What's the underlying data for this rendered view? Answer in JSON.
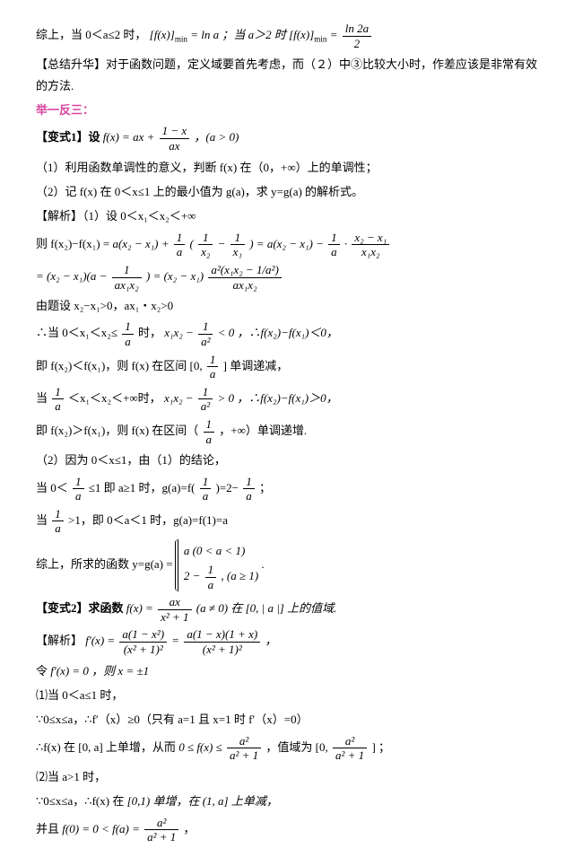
{
  "l1a": "综上，当 0＜a≤2 时，",
  "l1b": "[f(x)]",
  "l1c": "min",
  "l1d": " = ln a ；当 a＞2 时 ",
  "l1e": "[f(x)]",
  "l1f": "min",
  "l1g": " = ",
  "frac1n": "ln 2a",
  "frac1d": "2",
  "l2": "【总结升华】对于函数问题，定义域要首先考虑，而（２）中③比较大小时，作差应该是非常有效的方法.",
  "l3": "举一反三：",
  "l4a": "【变式1】设 ",
  "l4b": "f(x) = ax + ",
  "frac2n": "1 − x",
  "frac2d": "ax",
  "l4c": "，(a > 0)",
  "l5": "（1）利用函数单调性的意义，判断 f(x) 在（0，+∞）上的单调性；",
  "l6": "（2）记 f(x) 在 0＜x≤1 上的最小值为 g(a)，求 y=g(a) 的解析式。",
  "l7": "【解析】（1）设 0＜x₁＜x₂＜+∞",
  "l8a": "则 f(x₂)−f(x₁) = ",
  "l8b": "a(x₂ − x₁) + ",
  "frac3n": "1",
  "frac3d": "a",
  "l8c": "(",
  "frac4n": "1",
  "frac4d": "x₂",
  "l8d": " − ",
  "frac5n": "1",
  "frac5d": "x₁",
  "l8e": ") = a(x₂ − x₁) − ",
  "frac6n": "1",
  "frac6d": "a",
  "l8f": " · ",
  "frac7n": "x₂ − x₁",
  "frac7d": "x₁x₂",
  "l9a": "= (x₂ − x₁)(a − ",
  "frac8n": "1",
  "frac8d": "ax₁x₂",
  "l9b": ") = (x₂ − x₁) ",
  "frac9n": "a²(x₁x₂ − 1/a²)",
  "frac9d": "ax₁x₂",
  "l10": "由题设 x₂−x₁>0，ax₁・x₂>0",
  "l11a": "∴当 0＜x₁＜x₂≤ ",
  "frac10n": "1",
  "frac10d": "a",
  "l11b": " 时，",
  "l11c": "x₁x₂ − ",
  "frac11n": "1",
  "frac11d": "a²",
  "l11d": " < 0 ，∴f(x₂)−f(x₁)＜0，",
  "l12a": "即 f(x₂)＜f(x₁)，则 f(x) 在区间 [0, ",
  "frac12n": "1",
  "frac12d": "a",
  "l12b": " ] 单调递减，",
  "l13a": "当 ",
  "frac13n": "1",
  "frac13d": "a",
  "l13b": " ＜x₁＜x₂＜+∞时，",
  "l13c": "x₁x₂ − ",
  "frac14n": "1",
  "frac14d": "a²",
  "l13d": " > 0 ，∴f(x₂)−f(x₁)＞0，",
  "l14a": "即 f(x₂)＞f(x₁)，则 f(x) 在区间（",
  "frac15n": "1",
  "frac15d": "a",
  "l14b": "，+∞）单调递增.",
  "l15": "（2）因为 0＜x≤1，由（1）的结论，",
  "l16a": "当 0＜",
  "frac16n": "1",
  "frac16d": "a",
  "l16b": " ≤1 即 a≥1 时，g(a)=f(",
  "frac17n": "1",
  "frac17d": "a",
  "l16c": ")=2− ",
  "frac18n": "1",
  "frac18d": "a",
  "l16d": " ；",
  "l17a": "当 ",
  "frac19n": "1",
  "frac19d": "a",
  "l17b": " >1，即 0＜a＜1 时，g(a)=f(1)=a",
  "l18a": "综上，所求的函数 y=g(a) = ",
  "case1a": "a      (0 < a < 1)",
  "case2a": "2 − ",
  "frac20n": "1",
  "frac20d": "a",
  "case2b": ", (a ≥ 1)",
  "l18b": " .",
  "l19a": "【变式2】求函数 ",
  "l19b": "f(x) = ",
  "frac21n": "ax",
  "frac21d": "x² + 1",
  "l19c": " (a ≠ 0) 在 [0, | a |] 上的值域.",
  "l20a": "【解析】",
  "l20b": "f′(x) = ",
  "frac22n": "a(1 − x²)",
  "frac22d": "(x² + 1)²",
  "l20c": " = ",
  "frac23n": "a(1 − x)(1 + x)",
  "frac23d": "(x² + 1)²",
  "l20d": " ，",
  "l21a": "令 ",
  "l21b": "f′(x) = 0 ，则 x = ±1",
  "l22": "⑴当 0＜a≤1 时，",
  "l23": "∵0≤x≤a，∴f′（x）≥0（只有 a=1 且 x=1 时 f′（x）=0）",
  "l24a": "∴f(x) 在 [0, a] 上单增，从而 ",
  "l24b": "0 ≤ f(x) ≤ ",
  "frac24n": "a²",
  "frac24d": "a² + 1",
  "l24c": " ，值域为 [0, ",
  "frac25n": "a²",
  "frac25d": "a² + 1",
  "l24d": " ] ；",
  "l25": "⑵当 a>1 时，",
  "l26a": "∵0≤x≤a，∴f(x) 在 ",
  "l26b": "[0,1) 单增，在 (1, a] 上单减，",
  "l27a": "并且 ",
  "l27b": "f(0) = 0 < f(a) = ",
  "frac26n": "a²",
  "frac26d": "a² + 1",
  "l27c": " ，"
}
